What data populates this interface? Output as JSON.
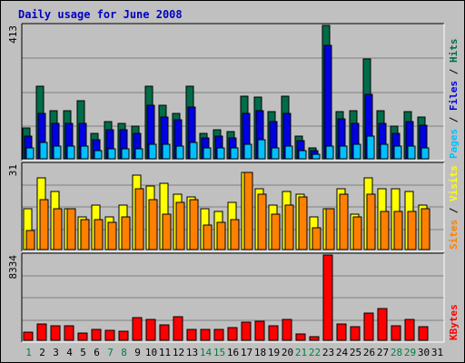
{
  "chart_data": {
    "type": "bar",
    "title": "Daily usage for June 2008",
    "categories": [
      "1",
      "2",
      "3",
      "4",
      "5",
      "6",
      "7",
      "8",
      "9",
      "10",
      "11",
      "12",
      "13",
      "14",
      "15",
      "16",
      "17",
      "18",
      "19",
      "20",
      "21",
      "22",
      "23",
      "24",
      "25",
      "26",
      "27",
      "28",
      "29",
      "30",
      "31"
    ],
    "weekend_days": [
      "1",
      "7",
      "8",
      "14",
      "15",
      "21",
      "22",
      "28",
      "29"
    ],
    "colors": {
      "hits": "#006c4a",
      "files": "#0000e0",
      "pages": "#00c0ff",
      "visits": "#ffff00",
      "sites": "#ff8000",
      "kbytes": "#ff0000",
      "weekend_label": "#007f40",
      "weekday_label": "#000000",
      "title": "#0000c0"
    },
    "panels": [
      {
        "id": "hits-files-pages",
        "ymax_label": "413",
        "ymax": 413,
        "legend": [
          {
            "label": "Pages",
            "color": "#00c0ff"
          },
          {
            "label": "Files",
            "color": "#0000e0"
          },
          {
            "label": "Hits",
            "color": "#006c4a"
          }
        ],
        "series": [
          {
            "name": "Hits",
            "values": [
              95,
              225,
              150,
              150,
              180,
              80,
              115,
              110,
              100,
              225,
              165,
              140,
              225,
              80,
              90,
              85,
              195,
              190,
              145,
              195,
              70,
              35,
              413,
              145,
              150,
              310,
              150,
              100,
              145,
              130,
              0
            ]
          },
          {
            "name": "Files",
            "values": [
              70,
              140,
              110,
              110,
              110,
              60,
              90,
              90,
              80,
              165,
              130,
              120,
              160,
              65,
              70,
              65,
              140,
              150,
              115,
              140,
              55,
              25,
              350,
              125,
              110,
              200,
              110,
              80,
              115,
              105,
              0
            ]
          },
          {
            "name": "Pages",
            "values": [
              35,
              50,
              40,
              40,
              40,
              25,
              30,
              30,
              30,
              45,
              45,
              40,
              50,
              35,
              35,
              35,
              45,
              60,
              35,
              40,
              25,
              15,
              40,
              40,
              45,
              70,
              45,
              40,
              40,
              35,
              0
            ]
          }
        ]
      },
      {
        "id": "visits-sites",
        "ymax_label": "31",
        "ymax": 31,
        "legend": [
          {
            "label": "Sites",
            "color": "#ff8000"
          },
          {
            "label": "Visits",
            "color": "#ffff00"
          }
        ],
        "series": [
          {
            "name": "Visits",
            "values": [
              15,
              26,
              21,
              15,
              12,
              16,
              12,
              16,
              27,
              23,
              24,
              20,
              19,
              15,
              14,
              17,
              28,
              22,
              16,
              21,
              20,
              12,
              15,
              22,
              13,
              26,
              22,
              22,
              21,
              16,
              0
            ]
          },
          {
            "name": "Sites",
            "values": [
              7,
              18,
              15,
              15,
              11,
              11,
              10,
              12,
              22,
              18,
              13,
              17,
              18,
              9,
              10,
              11,
              28,
              20,
              13,
              16,
              19,
              8,
              15,
              20,
              12,
              20,
              14,
              14,
              14,
              15,
              0
            ]
          }
        ]
      },
      {
        "id": "kbytes",
        "ymax_label": "8334",
        "ymax": 8334,
        "legend": [
          {
            "label": "KBytes",
            "color": "#ff0000"
          }
        ],
        "series": [
          {
            "name": "KBytes",
            "values": [
              800,
              1600,
              1450,
              1450,
              700,
              1100,
              950,
              900,
              2200,
              2000,
              1500,
              2300,
              1100,
              1100,
              1100,
              1200,
              1800,
              1900,
              1400,
              2000,
              650,
              350,
              8334,
              1600,
              1350,
              2700,
              3100,
              1450,
              2000,
              1350,
              0
            ]
          }
        ]
      }
    ]
  }
}
